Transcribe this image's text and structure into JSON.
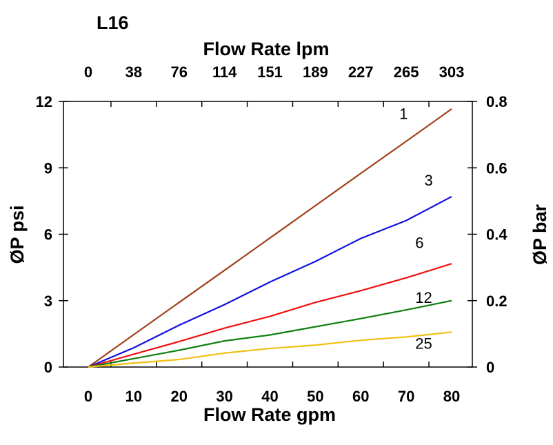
{
  "chart_data": {
    "type": "line",
    "title": "L16",
    "xlabel": "Flow Rate gpm",
    "x2label": "Flow Rate lpm",
    "ylabel": "ØP psi",
    "y2label": "ØP bar",
    "xlim": [
      0,
      80
    ],
    "ylim": [
      0,
      12
    ],
    "x_ticks": [
      "0",
      "10",
      "20",
      "30",
      "40",
      "50",
      "60",
      "70",
      "80"
    ],
    "x2_ticks": [
      "0",
      "38",
      "76",
      "114",
      "151",
      "189",
      "227",
      "265",
      "303"
    ],
    "y_ticks": [
      "0",
      "3",
      "6",
      "9",
      "12"
    ],
    "y2_ticks": [
      "0",
      "0.2",
      "0.4",
      "0.6",
      "0.8"
    ],
    "grid": false,
    "x": [
      0,
      10,
      20,
      30,
      40,
      50,
      60,
      70,
      80
    ],
    "series": [
      {
        "name": "1",
        "color": "#a0401a",
        "values": [
          0,
          1.46,
          2.92,
          4.37,
          5.83,
          7.29,
          8.75,
          10.2,
          11.66
        ]
      },
      {
        "name": "3",
        "color": "#1010e0",
        "values": [
          0,
          0.87,
          1.89,
          2.82,
          3.84,
          4.77,
          5.81,
          6.62,
          7.7
        ]
      },
      {
        "name": "6",
        "color": "#f01010",
        "values": [
          0,
          0.58,
          1.15,
          1.76,
          2.29,
          2.92,
          3.45,
          4.03,
          4.67
        ]
      },
      {
        "name": "12",
        "color": "#108010",
        "values": [
          0,
          0.38,
          0.76,
          1.18,
          1.45,
          1.82,
          2.19,
          2.58,
          3.0
        ]
      },
      {
        "name": "25",
        "color": "#f0c010",
        "values": [
          0,
          0.18,
          0.34,
          0.63,
          0.84,
          0.99,
          1.21,
          1.36,
          1.58
        ]
      }
    ]
  }
}
